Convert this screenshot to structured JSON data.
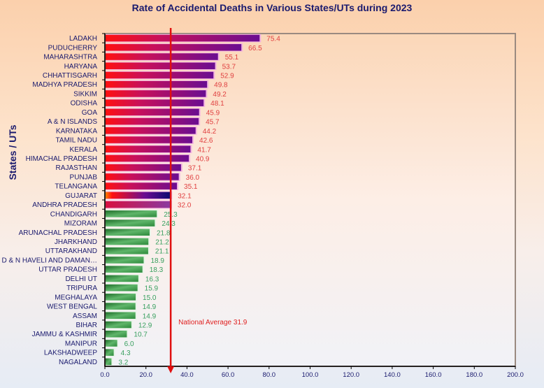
{
  "chart_data": {
    "type": "bar",
    "orientation": "horizontal",
    "title": "Rate of Accidental Deaths in Various States/UTs during 2023",
    "xlabel": "",
    "ylabel": "States / UTs",
    "xlim": [
      0,
      200
    ],
    "x_ticks": [
      "0.0",
      "20.0",
      "40.0",
      "60.0",
      "80.0",
      "100.0",
      "120.0",
      "140.0",
      "160.0",
      "180.0",
      "200.0"
    ],
    "grid": false,
    "categories": [
      "LADAKH",
      "PUDUCHERRY",
      "MAHARASHTRA",
      "HARYANA",
      "CHHATTISGARH",
      "MADHYA PRADESH",
      "SIKKIM",
      "ODISHA",
      "GOA",
      "A & N ISLANDS",
      "KARNATAKA",
      "TAMIL NADU",
      "KERALA",
      "HIMACHAL PRADESH",
      "RAJASTHAN",
      "PUNJAB",
      "TELANGANA",
      "GUJARAT",
      "ANDHRA PRADESH",
      "CHANDIGARH",
      "MIZORAM",
      "ARUNACHAL PRADESH",
      "JHARKHAND",
      "UTTARAKHAND",
      "D & N HAVELI AND DAMAN…",
      "UTTAR PRADESH",
      "DELHI UT",
      "TRIPURA",
      "MEGHALAYA",
      "WEST BENGAL",
      "ASSAM",
      "BIHAR",
      "JAMMU & KASHMIR",
      "MANIPUR",
      "LAKSHADWEEP",
      "NAGALAND"
    ],
    "values": [
      75.4,
      66.5,
      55.1,
      53.7,
      52.9,
      49.8,
      49.2,
      48.1,
      45.9,
      45.7,
      44.2,
      42.6,
      41.7,
      40.9,
      37.1,
      36.0,
      35.1,
      32.1,
      32.0,
      25.3,
      24.3,
      21.8,
      21.2,
      21.1,
      18.9,
      18.3,
      16.3,
      15.9,
      15.0,
      14.9,
      14.9,
      12.9,
      10.7,
      6.0,
      4.3,
      3.2
    ],
    "value_labels": [
      "75.4",
      "66.5",
      "55.1",
      "53.7",
      "52.9",
      "49.8",
      "49.2",
      "48.1",
      "45.9",
      "45.7",
      "44.2",
      "42.6",
      "41.7",
      "40.9",
      "37.1",
      "36.0",
      "35.1",
      "32.1",
      "32.0",
      "25.3",
      "24.3",
      "21.8",
      "21.2",
      "21.1",
      "18.9",
      "18.3",
      "16.3",
      "15.9",
      "15.0",
      "14.9",
      "14.9",
      "12.9",
      "10.7",
      "6.0",
      "4.3",
      "3.2"
    ],
    "reference_line": {
      "label": "National Average 31.9",
      "value": 31.9
    },
    "colors": {
      "above_average_start": "#ff1010",
      "above_average_end": "#6a0d91",
      "below_average_start": "#2e7d32",
      "below_average_end": "#8fd18f",
      "above_label": "#e04040",
      "below_label": "#3aa060",
      "reference": "#e01010",
      "axis_text": "#1a1a6e"
    }
  }
}
